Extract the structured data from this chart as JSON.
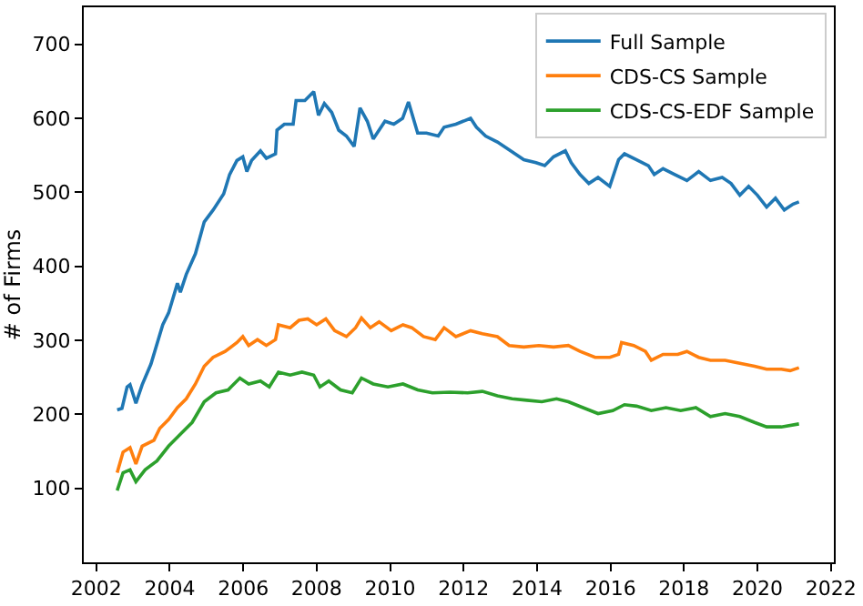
{
  "chart_data": {
    "type": "line",
    "ylabel": "# of Firms",
    "xlim": [
      2001.66,
      2022.08
    ],
    "ylim": [
      0,
      750
    ],
    "xticks": [
      2002,
      2004,
      2006,
      2008,
      2010,
      2012,
      2014,
      2016,
      2018,
      2020,
      2022
    ],
    "yticks": [
      100,
      200,
      300,
      400,
      500,
      600,
      700
    ],
    "legend": "top right",
    "marker": "none",
    "line_style": "solid",
    "series": [
      {
        "name": "Full Sample",
        "color": "#1f77b4",
        "x": [
          2002.57,
          2002.7,
          2002.84,
          2002.92,
          2003.08,
          2003.25,
          2003.49,
          2003.81,
          2003.97,
          2004.21,
          2004.29,
          2004.45,
          2004.7,
          2004.94,
          2005.18,
          2005.47,
          2005.63,
          2005.83,
          2005.99,
          2006.1,
          2006.23,
          2006.47,
          2006.63,
          2006.88,
          2006.92,
          2007.12,
          2007.36,
          2007.44,
          2007.68,
          2007.92,
          2008.05,
          2008.21,
          2008.41,
          2008.6,
          2008.81,
          2009.02,
          2009.18,
          2009.38,
          2009.54,
          2009.86,
          2010.1,
          2010.34,
          2010.5,
          2010.75,
          2010.99,
          2011.31,
          2011.47,
          2011.79,
          2012.19,
          2012.35,
          2012.6,
          2012.92,
          2013.16,
          2013.4,
          2013.64,
          2013.97,
          2014.21,
          2014.45,
          2014.77,
          2014.93,
          2015.17,
          2015.41,
          2015.66,
          2015.98,
          2016.22,
          2016.38,
          2016.71,
          2017.03,
          2017.19,
          2017.43,
          2017.75,
          2018.08,
          2018.4,
          2018.72,
          2019.04,
          2019.28,
          2019.52,
          2019.76,
          2020.0,
          2020.25,
          2020.49,
          2020.73,
          2020.97,
          2021.13
        ],
        "values": [
          206,
          208,
          237,
          240,
          215,
          240,
          268,
          321,
          337,
          377,
          365,
          389,
          417,
          460,
          476,
          498,
          524,
          543,
          548,
          528,
          543,
          556,
          546,
          552,
          584,
          592,
          592,
          624,
          624,
          636,
          604,
          620,
          608,
          584,
          576,
          562,
          614,
          596,
          572,
          596,
          592,
          600,
          622,
          580,
          580,
          576,
          588,
          592,
          600,
          588,
          576,
          568,
          560,
          552,
          544,
          540,
          536,
          548,
          556,
          540,
          524,
          512,
          520,
          508,
          544,
          552,
          544,
          536,
          524,
          532,
          524,
          516,
          528,
          516,
          520,
          512,
          496,
          508,
          496,
          480,
          492,
          476,
          484,
          487
        ]
      },
      {
        "name": "CDS-CS Sample",
        "color": "#ff7f0e",
        "x": [
          2002.57,
          2002.73,
          2002.92,
          2003.08,
          2003.25,
          2003.57,
          2003.73,
          2003.97,
          2004.21,
          2004.45,
          2004.7,
          2004.94,
          2005.18,
          2005.51,
          2005.83,
          2005.99,
          2006.15,
          2006.39,
          2006.63,
          2006.88,
          2006.96,
          2007.28,
          2007.52,
          2007.76,
          2008.0,
          2008.25,
          2008.49,
          2008.81,
          2009.06,
          2009.22,
          2009.46,
          2009.7,
          2010.03,
          2010.35,
          2010.59,
          2010.91,
          2011.23,
          2011.47,
          2011.79,
          2012.19,
          2012.51,
          2012.92,
          2013.24,
          2013.64,
          2014.05,
          2014.45,
          2014.85,
          2015.17,
          2015.58,
          2015.98,
          2016.22,
          2016.3,
          2016.63,
          2016.95,
          2017.11,
          2017.43,
          2017.83,
          2018.08,
          2018.4,
          2018.72,
          2019.12,
          2019.52,
          2019.92,
          2020.25,
          2020.65,
          2020.89,
          2021.13
        ],
        "values": [
          121,
          149,
          155,
          133,
          157,
          165,
          181,
          193,
          209,
          221,
          241,
          265,
          277,
          285,
          297,
          305,
          293,
          301,
          293,
          301,
          321,
          317,
          327,
          329,
          321,
          329,
          313,
          305,
          317,
          330,
          317,
          325,
          313,
          321,
          317,
          305,
          301,
          317,
          305,
          313,
          309,
          305,
          293,
          291,
          293,
          291,
          293,
          285,
          277,
          277,
          281,
          297,
          293,
          285,
          273,
          281,
          281,
          285,
          277,
          273,
          273,
          269,
          265,
          261,
          261,
          259,
          263
        ]
      },
      {
        "name": "CDS-CS-EDF Sample",
        "color": "#2ca02c",
        "x": [
          2002.57,
          2002.73,
          2002.92,
          2003.08,
          2003.33,
          2003.65,
          2003.97,
          2004.29,
          2004.61,
          2004.94,
          2005.26,
          2005.59,
          2005.91,
          2006.15,
          2006.47,
          2006.71,
          2006.96,
          2007.28,
          2007.6,
          2007.92,
          2008.09,
          2008.33,
          2008.65,
          2008.97,
          2009.22,
          2009.54,
          2009.94,
          2010.35,
          2010.75,
          2011.15,
          2011.63,
          2012.11,
          2012.51,
          2012.92,
          2013.32,
          2013.72,
          2014.13,
          2014.53,
          2014.85,
          2015.25,
          2015.66,
          2016.06,
          2016.38,
          2016.71,
          2017.11,
          2017.51,
          2017.91,
          2018.32,
          2018.72,
          2019.12,
          2019.52,
          2019.92,
          2020.25,
          2020.65,
          2021.13
        ],
        "values": [
          97,
          121,
          125,
          109,
          125,
          137,
          157,
          173,
          189,
          217,
          229,
          233,
          249,
          241,
          245,
          237,
          257,
          253,
          257,
          253,
          237,
          245,
          233,
          229,
          249,
          241,
          237,
          241,
          233,
          229,
          230,
          229,
          231,
          225,
          221,
          219,
          217,
          221,
          217,
          209,
          201,
          205,
          213,
          211,
          205,
          209,
          205,
          209,
          197,
          201,
          197,
          189,
          183,
          183,
          187
        ]
      }
    ]
  }
}
